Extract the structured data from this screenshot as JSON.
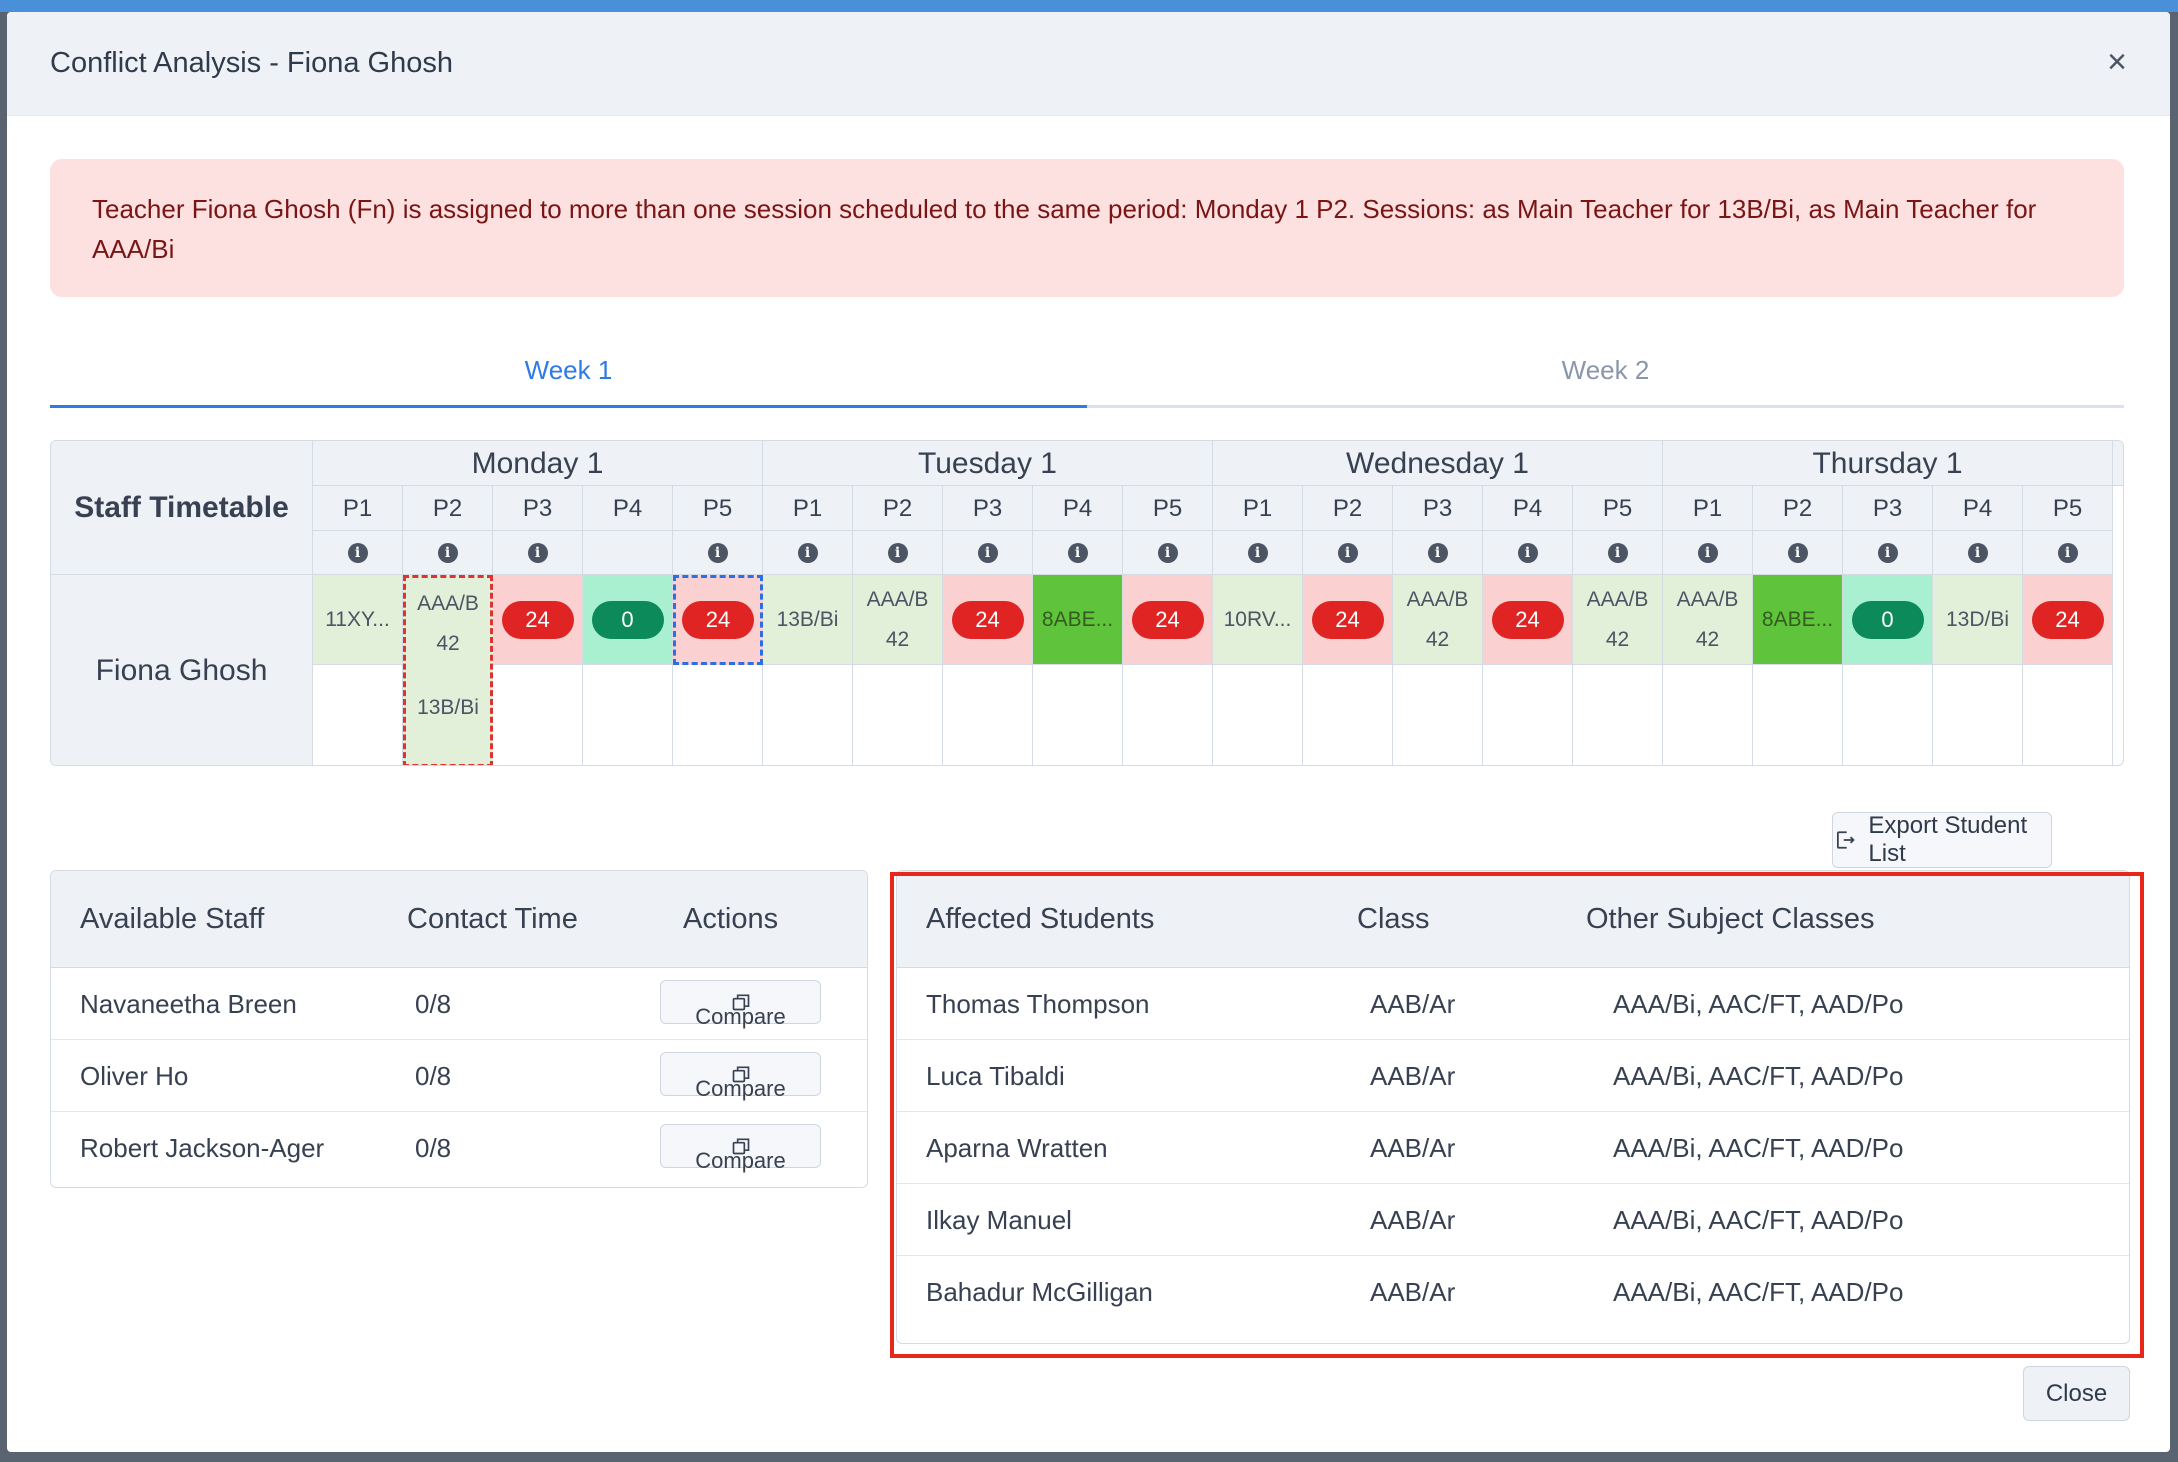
{
  "modal": {
    "title": "Conflict Analysis - Fiona Ghosh",
    "close_icon": "close-icon"
  },
  "alert": {
    "message": "Teacher Fiona Ghosh (Fn) is assigned to more than one session scheduled to the same period: Monday 1 P2. Sessions: as Main Teacher for 13B/Bi, as Main Teacher for AAA/Bi"
  },
  "tabs": [
    {
      "label": "Week 1",
      "active": true
    },
    {
      "label": "Week 2",
      "active": false
    }
  ],
  "timetable": {
    "corner_label": "Staff Timetable",
    "staff_name": "Fiona Ghosh",
    "days": [
      "Monday 1",
      "Tuesday 1",
      "Wednesday 1",
      "Thursday 1"
    ],
    "periods": [
      "P1",
      "P2",
      "P3",
      "P4",
      "P5"
    ],
    "info_icon": "info-icon",
    "row1": [
      {
        "text": "11XY...",
        "style": "green",
        "info": true
      },
      {
        "text": "AAA/B 42",
        "style": "green",
        "info": true,
        "conflict": true
      },
      {
        "text": "24",
        "style": "red",
        "pill": "red",
        "info": true
      },
      {
        "text": "0",
        "style": "mint",
        "pill": "green",
        "info": false
      },
      {
        "text": "24",
        "style": "red",
        "pill": "red",
        "info": true,
        "selected": true
      },
      {
        "text": "13B/Bi",
        "style": "green",
        "info": true
      },
      {
        "text": "AAA/B 42",
        "style": "green",
        "info": true
      },
      {
        "text": "24",
        "style": "red",
        "pill": "red",
        "info": true
      },
      {
        "text": "8ABE...",
        "style": "bright",
        "info": true
      },
      {
        "text": "24",
        "style": "red",
        "pill": "red",
        "info": true
      },
      {
        "text": "10RV...",
        "style": "green",
        "info": true
      },
      {
        "text": "24",
        "style": "red",
        "pill": "red",
        "info": true
      },
      {
        "text": "AAA/B 42",
        "style": "green",
        "info": true
      },
      {
        "text": "24",
        "style": "red",
        "pill": "red",
        "info": true
      },
      {
        "text": "AAA/B 42",
        "style": "green",
        "info": true
      },
      {
        "text": "AAA/B 42",
        "style": "green",
        "info": true
      },
      {
        "text": "8ABE...",
        "style": "bright",
        "info": true
      },
      {
        "text": "0",
        "style": "mint",
        "pill": "green",
        "info": true
      },
      {
        "text": "13D/Bi",
        "style": "green",
        "info": true
      },
      {
        "text": "24",
        "style": "red",
        "pill": "red",
        "info": true
      }
    ],
    "row2_conflict_text": "13B/Bi"
  },
  "export_button": {
    "label": "Export Student List",
    "icon": "export-icon"
  },
  "available_staff": {
    "headers": [
      "Available Staff",
      "Contact Time",
      "Actions"
    ],
    "rows": [
      {
        "name": "Navaneetha Breen",
        "contact": "0/8",
        "action": "Compare"
      },
      {
        "name": "Oliver Ho",
        "contact": "0/8",
        "action": "Compare"
      },
      {
        "name": "Robert Jackson-Ager",
        "contact": "0/8",
        "action": "Compare"
      }
    ],
    "compare_icon": "copy-icon"
  },
  "affected_students": {
    "headers": [
      "Affected Students",
      "Class",
      "Other Subject Classes"
    ],
    "rows": [
      {
        "name": "Thomas Thompson",
        "class": "AAB/Ar",
        "other": "AAA/Bi, AAC/FT, AAD/Po"
      },
      {
        "name": "Luca Tibaldi",
        "class": "AAB/Ar",
        "other": "AAA/Bi, AAC/FT, AAD/Po"
      },
      {
        "name": "Aparna Wratten",
        "class": "AAB/Ar",
        "other": "AAA/Bi, AAC/FT, AAD/Po"
      },
      {
        "name": "Ilkay Manuel",
        "class": "AAB/Ar",
        "other": "AAA/Bi, AAC/FT, AAD/Po"
      },
      {
        "name": "Bahadur McGilligan",
        "class": "AAB/Ar",
        "other": "AAA/Bi, AAC/FT, AAD/Po"
      }
    ]
  },
  "footer": {
    "close_label": "Close"
  },
  "colors": {
    "accent": "#2f7be5",
    "alert_bg": "#fde0e0",
    "alert_text": "#7a1515",
    "pill_red": "#e02424",
    "pill_green": "#0c8a5a",
    "highlight": "#e8271a"
  }
}
